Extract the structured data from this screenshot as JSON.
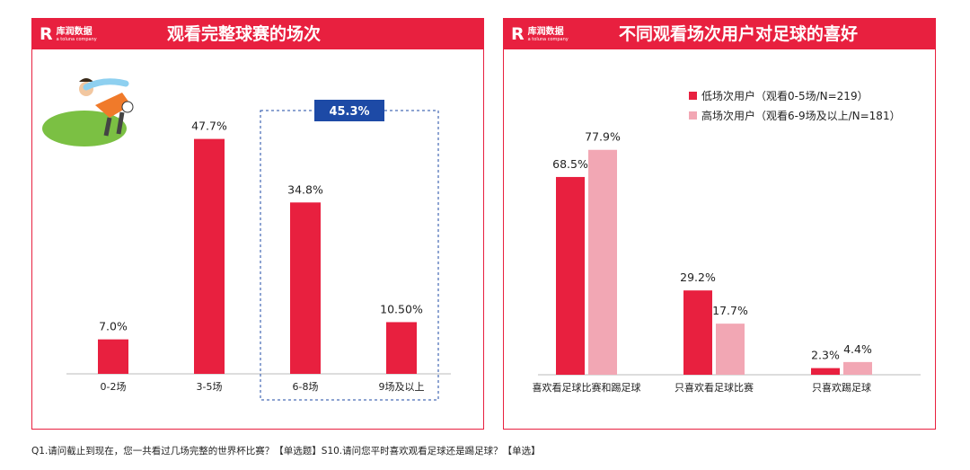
{
  "colors": {
    "accent": "#e8203f",
    "light": "#f2a7b4",
    "callout": "#1d4aa6",
    "box": "#1d4aa6",
    "axis": "#bbbbbb"
  },
  "brand": {
    "name": "库润数据",
    "tagline": "a toluna company"
  },
  "left_panel": {
    "title": "观看完整球赛的场次"
  },
  "right_panel": {
    "title": "不同观看场次用户对足球的喜好"
  },
  "footnote": "Q1.请问截止到现在，您一共看过几场完整的世界杯比赛？【单选题】S10.请问您平时喜欢观看足球还是踢足球？【单选】",
  "chart_data": [
    {
      "type": "bar",
      "title": "观看完整球赛的场次",
      "categories": [
        "0-2场",
        "3-5场",
        "6-8场",
        "9场及以上"
      ],
      "values": [
        7.0,
        47.7,
        34.8,
        10.5
      ],
      "labels": [
        "7.0%",
        "47.7%",
        "34.8%",
        "10.50%"
      ],
      "ylim": [
        0,
        50
      ],
      "callout": {
        "text": "45.3%",
        "covers": [
          "6-8场",
          "9场及以上"
        ]
      }
    },
    {
      "type": "bar",
      "title": "不同观看场次用户对足球的喜好",
      "categories": [
        "喜欢看足球比赛和踢足球",
        "只喜欢看足球比赛",
        "只喜欢踢足球"
      ],
      "series": [
        {
          "name": "低场次用户（观看0-5场/N=219）",
          "values": [
            68.5,
            29.2,
            2.3
          ],
          "labels": [
            "68.5%",
            "29.2%",
            "2.3%"
          ]
        },
        {
          "name": "高场次用户（观看6-9场及以上/N=181）",
          "values": [
            77.9,
            17.7,
            4.4
          ],
          "labels": [
            "77.9%",
            "17.7%",
            "4.4%"
          ]
        }
      ],
      "ylim": [
        0,
        80
      ],
      "legend": "top-right"
    }
  ]
}
